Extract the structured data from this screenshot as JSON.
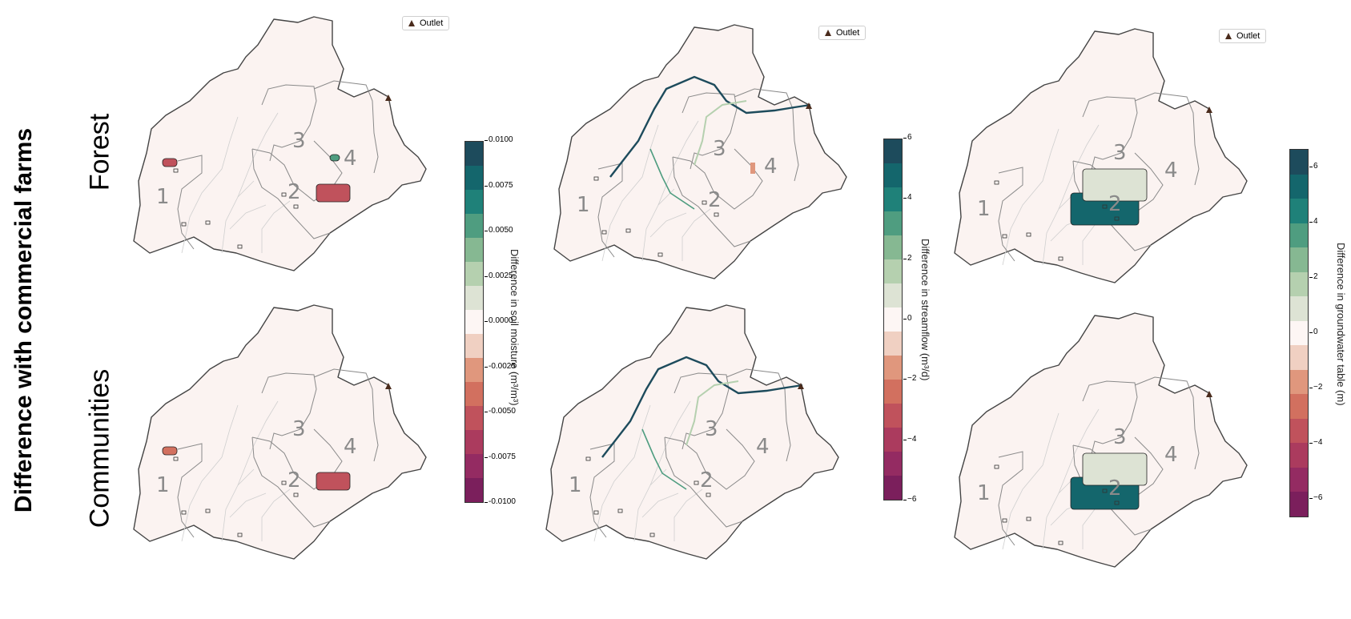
{
  "figure": {
    "title": "Difference with commercial farms",
    "row_labels": [
      "Forest",
      "Communities"
    ],
    "legend_label": "Outlet",
    "subbasin_labels": [
      "1",
      "2",
      "3",
      "4"
    ]
  },
  "colors": {
    "basin_fill": "#fbf3f1",
    "basin_edge": "#444444",
    "subbasin_edge": "#8a8a8a",
    "stream_edge": "#cfcfcf",
    "outlet": "#4a2b1c",
    "label_text": "#8a8a8a",
    "diverging_scale": [
      "#7b1f5c",
      "#942b62",
      "#ab3b5e",
      "#c0525c",
      "#d2705f",
      "#e0977d",
      "#f0d0c2",
      "#fdf6f4",
      "#dde3d4",
      "#b5d0af",
      "#86b892",
      "#4f9d80",
      "#1f8179",
      "#14666c",
      "#1d4b5c"
    ]
  },
  "chart_data": [
    {
      "type": "heatmap",
      "title": "",
      "panel": "Forest",
      "variable": "soil moisture",
      "colorbar": {
        "label": "Difference in soil moisture (m³/m³)",
        "range": [
          -0.01,
          0.01
        ],
        "ticks": [
          "0.0100",
          "0.0075",
          "0.0050",
          "0.0025",
          "0.0000",
          "-0.0025",
          "-0.0050",
          "-0.0075",
          "-0.0100"
        ]
      },
      "patches": [
        {
          "subbasin": "2",
          "value": -0.006
        },
        {
          "subbasin": "1",
          "value": -0.006
        },
        {
          "subbasin": "4",
          "value": 0.005
        }
      ]
    },
    {
      "type": "heatmap",
      "title": "",
      "panel": "Forest",
      "variable": "streamflow",
      "colorbar": {
        "label": "Difference in streamflow (m³/d)",
        "range": [
          -6,
          6
        ],
        "ticks": [
          "6",
          "4",
          "2",
          "0",
          "−2",
          "−4",
          "−6"
        ]
      },
      "patches": [
        {
          "feature": "main channel",
          "value": 6
        },
        {
          "feature": "subbasin 3 channel",
          "value": 2
        },
        {
          "subbasin": "4",
          "value": -2
        }
      ]
    },
    {
      "type": "heatmap",
      "title": "",
      "panel": "Forest",
      "variable": "groundwater table",
      "colorbar": {
        "label": "Difference in groundwater table (m)",
        "range": [
          -7.5,
          7.5
        ],
        "ticks": [
          "6",
          "4",
          "2",
          "0",
          "−2",
          "−4",
          "−6"
        ]
      },
      "patches": [
        {
          "subbasin": "2",
          "value": 6
        },
        {
          "subbasin": "4",
          "value": 1.5
        }
      ]
    },
    {
      "type": "heatmap",
      "title": "",
      "panel": "Communities",
      "variable": "soil moisture",
      "colorbar_shared_with": 0,
      "patches": [
        {
          "subbasin": "2",
          "value": -0.006
        },
        {
          "subbasin": "1",
          "value": -0.004
        }
      ]
    },
    {
      "type": "heatmap",
      "title": "",
      "panel": "Communities",
      "variable": "streamflow",
      "colorbar_shared_with": 1,
      "patches": [
        {
          "feature": "main channel",
          "value": 6
        },
        {
          "feature": "subbasin 3 channel",
          "value": 2
        }
      ]
    },
    {
      "type": "heatmap",
      "title": "",
      "panel": "Communities",
      "variable": "groundwater table",
      "colorbar_shared_with": 2,
      "patches": [
        {
          "subbasin": "2",
          "value": 6
        },
        {
          "subbasin": "4",
          "value": 1.5
        }
      ]
    }
  ]
}
